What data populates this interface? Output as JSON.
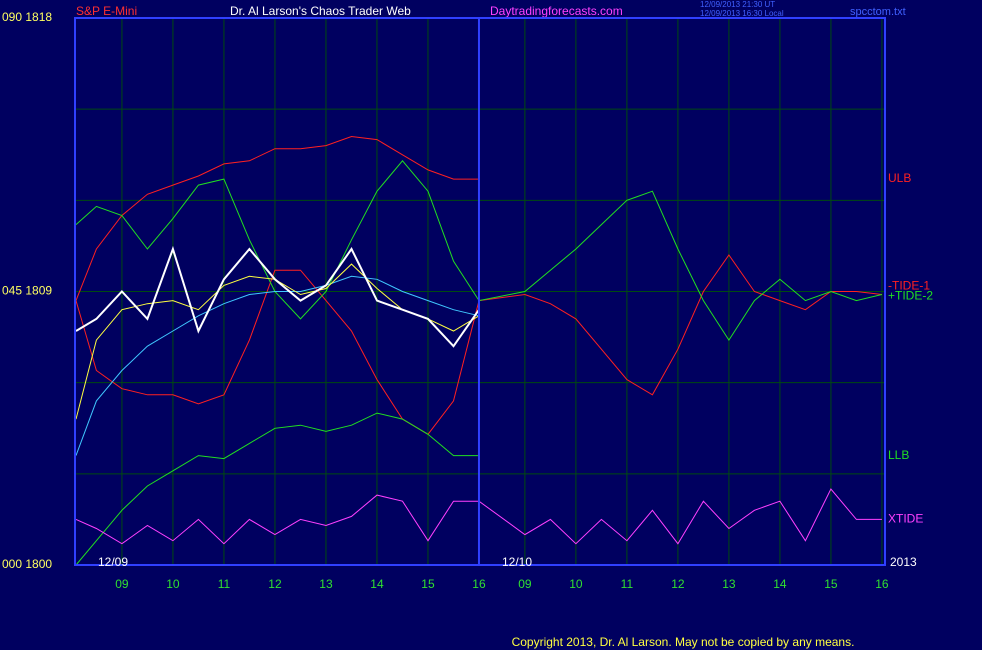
{
  "chart_data": {
    "type": "line",
    "instrument": "S&P E-Mini",
    "title": "Dr. Al Larson's Chaos Trader Web",
    "site": "Daytradingforecasts.com",
    "timestamp_ut": "12/09/2013 21:30 UT",
    "timestamp_local": "12/09/2013 16:30 Local",
    "file": "spcctom.txt",
    "annotations": [
      "12/09",
      "12/10",
      "2013"
    ],
    "footer": "Copyright 2013, Dr. Al Larson. May not be copied by any means.",
    "xlim": [
      8.08,
      23.96
    ],
    "xticks": [
      {
        "value": 9,
        "label": "09"
      },
      10,
      11,
      12,
      13,
      14,
      15,
      16,
      {
        "value": 16.9,
        "label": "09"
      },
      {
        "value": 17.9,
        "label": "10"
      },
      {
        "value": 18.9,
        "label": "11"
      },
      {
        "value": 19.9,
        "label": "12"
      },
      {
        "value": 20.9,
        "label": "13"
      },
      {
        "value": 21.9,
        "label": "14"
      },
      {
        "value": 22.9,
        "label": "15"
      },
      {
        "value": 23.9,
        "label": "16"
      }
    ],
    "day_break": 16,
    "ylim": [
      1800,
      1818
    ],
    "yticks": [
      {
        "value": 1818,
        "label": "090  1818"
      },
      {
        "value": 1809,
        "label": "045  1809"
      },
      {
        "value": 1800,
        "label": "000  1800"
      }
    ],
    "ygrid": [
      1803,
      1806,
      1812,
      1815
    ],
    "grid": true,
    "x": [
      8.1,
      8.5,
      9,
      9.5,
      10,
      10.5,
      11,
      11.5,
      12,
      12.5,
      13,
      13.5,
      14,
      14.5,
      15,
      15.5,
      16,
      16.9,
      17.4,
      17.9,
      18.4,
      18.9,
      19.4,
      19.9,
      20.4,
      20.9,
      21.4,
      21.9,
      22.4,
      22.9,
      23.4,
      23.9
    ],
    "series": [
      {
        "name": "ULB",
        "color": "#ff2020",
        "values": [
          1808.7,
          1810.4,
          1811.5,
          1812.2,
          1812.5,
          1812.8,
          1813.2,
          1813.3,
          1813.7,
          1813.7,
          1813.8,
          1814.1,
          1814.0,
          1813.5,
          1813.0,
          1812.7,
          1812.7,
          null,
          null,
          null,
          null,
          null,
          null,
          null,
          null,
          null,
          null,
          null,
          null,
          null,
          null,
          null
        ]
      },
      {
        "name": "-TIDE-1",
        "color": "#ff2020",
        "values": [
          1808.7,
          1806.4,
          1805.8,
          1805.6,
          1805.6,
          1805.3,
          1805.6,
          1807.4,
          1809.7,
          1809.7,
          1808.7,
          1807.7,
          1806.1,
          1804.8,
          1804.3,
          1805.4,
          1808.7,
          1808.9,
          1808.6,
          1808.1,
          1807.1,
          1806.1,
          1805.6,
          1807.1,
          1809.0,
          1810.2,
          1809.0,
          1808.7,
          1808.4,
          1809.0,
          1809.0,
          1808.9
        ]
      },
      {
        "name": "+TIDE-2",
        "color": "#20e020",
        "values": [
          1811.2,
          1811.8,
          1811.5,
          1810.4,
          1811.4,
          1812.5,
          1812.7,
          1810.7,
          1809.0,
          1808.1,
          1809.0,
          1810.7,
          1812.3,
          1813.3,
          1812.3,
          1810.0,
          1808.7,
          1809.0,
          1809.7,
          1810.4,
          1811.2,
          1812.0,
          1812.3,
          1810.4,
          1808.7,
          1807.4,
          1808.7,
          1809.4,
          1808.7,
          1809.0,
          1808.7,
          1808.9
        ]
      },
      {
        "name": "LLB",
        "color": "#20e020",
        "values": [
          1800.0,
          1800.8,
          1801.8,
          1802.6,
          1803.1,
          1803.6,
          1803.5,
          1804.0,
          1804.5,
          1804.6,
          1804.4,
          1804.6,
          1805.0,
          1804.8,
          1804.3,
          1803.6,
          1803.6,
          null,
          null,
          null,
          null,
          null,
          null,
          null,
          null,
          null,
          null,
          null,
          null,
          null,
          null,
          null
        ]
      },
      {
        "name": "XTIDE",
        "color": "#ff40ff",
        "values": [
          1801.5,
          1801.2,
          1800.7,
          1801.3,
          1800.8,
          1801.5,
          1800.7,
          1801.5,
          1801.0,
          1801.5,
          1801.3,
          1801.6,
          1802.3,
          1802.1,
          1800.8,
          1802.1,
          1802.1,
          1801.0,
          1801.5,
          1800.7,
          1801.5,
          1800.8,
          1801.8,
          1800.7,
          1802.1,
          1801.2,
          1801.8,
          1802.1,
          1800.8,
          1802.5,
          1801.5,
          1801.5
        ]
      },
      {
        "color": "#40c8ff",
        "values": [
          1803.6,
          1805.4,
          1806.4,
          1807.2,
          1807.7,
          1808.2,
          1808.6,
          1808.9,
          1809.0,
          1809.0,
          1809.2,
          1809.5,
          1809.4,
          1809.0,
          1808.7,
          1808.4,
          1808.2,
          null,
          null,
          null,
          null,
          null,
          null,
          null,
          null,
          null,
          null,
          null,
          null,
          null,
          null,
          null
        ]
      },
      {
        "color": "#ffff40",
        "values": [
          1804.8,
          1807.4,
          1808.4,
          1808.6,
          1808.7,
          1808.4,
          1809.2,
          1809.5,
          1809.4,
          1808.9,
          1809.1,
          1809.9,
          1809.1,
          1808.4,
          1808.1,
          1807.7,
          1808.2,
          null,
          null,
          null,
          null,
          null,
          null,
          null,
          null,
          null,
          null,
          null,
          null,
          null,
          null,
          null
        ]
      },
      {
        "color": "#ffffff",
        "values": [
          1807.7,
          1808.1,
          1809.0,
          1808.1,
          1810.4,
          1807.7,
          1809.4,
          1810.4,
          1809.4,
          1808.7,
          1809.2,
          1810.4,
          1808.7,
          1808.4,
          1808.1,
          1807.2,
          1808.4,
          null,
          null,
          null,
          null,
          null,
          null,
          null,
          null,
          null,
          null,
          null,
          null,
          null,
          null,
          null
        ]
      }
    ]
  }
}
